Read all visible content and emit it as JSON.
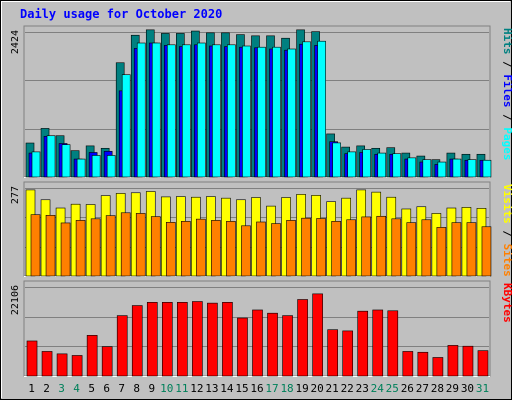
{
  "chart_data": {
    "type": "bar",
    "title": "Daily usage for October 2020",
    "days": [
      "1",
      "2",
      "3",
      "4",
      "5",
      "6",
      "7",
      "8",
      "9",
      "10",
      "11",
      "12",
      "13",
      "14",
      "15",
      "16",
      "17",
      "18",
      "19",
      "20",
      "21",
      "22",
      "23",
      "24",
      "25",
      "26",
      "27",
      "28",
      "29",
      "30",
      "31"
    ],
    "weekend_days": [
      "3",
      "4",
      "10",
      "11",
      "17",
      "18",
      "24",
      "25",
      "31"
    ],
    "panels": [
      {
        "id": "hits",
        "max_label": "2424",
        "ymax": 2424,
        "series": [
          {
            "name": "Hits",
            "color": "#008080",
            "values": [
              568,
              812,
              690,
              440,
              520,
              480,
              1910,
              2370,
              2460,
              2400,
              2400,
              2440,
              2410,
              2410,
              2380,
              2360,
              2360,
              2320,
              2460,
              2430,
              720,
              500,
              520,
              480,
              490,
              400,
              350,
              290,
              400,
              380,
              380
            ]
          },
          {
            "name": "Files",
            "color": "#0000ff",
            "values": [
              400,
              680,
              560,
              300,
              410,
              430,
              1440,
              2150,
              2240,
              2200,
              2180,
              2210,
              2190,
              2180,
              2170,
              2160,
              2140,
              2120,
              2220,
              2200,
              590,
              390,
              410,
              380,
              380,
              300,
              250,
              210,
              300,
              280,
              280
            ]
          },
          {
            "name": "Pages",
            "color": "#00ffff",
            "values": [
              420,
              690,
              540,
              300,
              360,
              360,
              1710,
              2240,
              2240,
              2210,
              2210,
              2240,
              2210,
              2210,
              2190,
              2170,
              2170,
              2140,
              2260,
              2270,
              570,
              420,
              460,
              400,
              390,
              320,
              290,
              250,
              300,
              290,
              280
            ]
          }
        ],
        "ylabel_parts": [
          {
            "text": "Pages",
            "color": "#00ffff"
          },
          {
            "text": " / ",
            "color": "#000000"
          },
          {
            "text": "Files",
            "color": "#0000ff"
          },
          {
            "text": " / ",
            "color": "#000000"
          },
          {
            "text": "Hits",
            "color": "#008080"
          }
        ]
      },
      {
        "id": "visits",
        "max_label": "277",
        "ymax": 277,
        "series": [
          {
            "name": "Visits",
            "color": "#ffff00",
            "values": [
              271,
              240,
              214,
              226,
              225,
              253,
              260,
              262,
              266,
              249,
              250,
              248,
              250,
              245,
              240,
              247,
              220,
              247,
              257,
              254,
              234,
              245,
              271,
              264,
              248,
              211,
              218,
              197,
              214,
              216,
              213
            ]
          },
          {
            "name": "Sites",
            "color": "#ff8000",
            "values": [
              193,
              191,
              167,
              175,
              180,
              190,
              199,
              197,
              187,
              169,
              172,
              179,
              175,
              172,
              158,
              170,
              165,
              175,
              182,
              181,
              172,
              177,
              186,
              188,
              180,
              168,
              177,
              153,
              168,
              168,
              155
            ]
          }
        ],
        "ylabel_parts": [
          {
            "text": "Sites",
            "color": "#ff8000"
          },
          {
            "text": " / ",
            "color": "#000000"
          },
          {
            "text": "Visits",
            "color": "#ffff00"
          }
        ]
      },
      {
        "id": "kbytes",
        "max_label": "22106",
        "ymax": 22106,
        "series": [
          {
            "name": "KBytes",
            "color": "#ff0000",
            "values": [
              8700,
              6100,
              5500,
              5100,
              10100,
              7300,
              15000,
              17500,
              18300,
              18300,
              18300,
              18500,
              18100,
              18300,
              14400,
              16400,
              15600,
              15000,
              19000,
              20400,
              11500,
              11200,
              16100,
              16400,
              16200,
              6100,
              5900,
              4600,
              7600,
              7400,
              6300
            ]
          }
        ],
        "ylabel_parts": [
          {
            "text": "KBytes",
            "color": "#ff0000"
          }
        ]
      }
    ]
  }
}
